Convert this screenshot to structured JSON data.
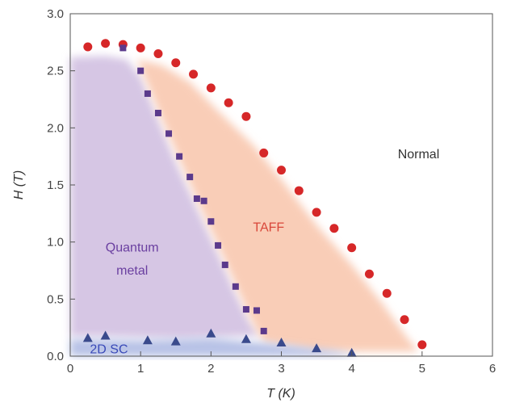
{
  "chart_data": {
    "type": "scatter",
    "xlabel": "T (K)",
    "ylabel": "H (T)",
    "xlim": [
      0,
      6
    ],
    "ylim": [
      0,
      3.0
    ],
    "xticks": [
      "0",
      "1",
      "2",
      "3",
      "4",
      "5",
      "6"
    ],
    "yticks": [
      "0.0",
      "0.5",
      "1.0",
      "1.5",
      "2.0",
      "2.5",
      "3.0"
    ],
    "grid": false,
    "colors": {
      "circles": "#d62728",
      "squares": "#5b3a8c",
      "triangles": "#3a4a8c",
      "quantum_metal_region": "#d6c6e4",
      "taff_region": "#f9cdb7",
      "sc_region": "#b8c2e6"
    },
    "series": [
      {
        "marker": "circle",
        "color": "#d62728",
        "x": [
          0.25,
          0.5,
          0.75,
          1.0,
          1.25,
          1.5,
          1.75,
          2.0,
          2.25,
          2.5,
          2.75,
          3.0,
          3.25,
          3.5,
          3.75,
          4.0,
          4.25,
          4.5,
          4.75,
          5.0
        ],
        "y": [
          2.71,
          2.74,
          2.73,
          2.7,
          2.65,
          2.57,
          2.47,
          2.35,
          2.22,
          2.1,
          1.78,
          1.63,
          1.45,
          1.26,
          1.12,
          0.95,
          0.72,
          0.55,
          0.32,
          0.1
        ]
      },
      {
        "marker": "square",
        "color": "#5b3a8c",
        "x": [
          0.75,
          1.0,
          1.1,
          1.25,
          1.4,
          1.55,
          1.7,
          1.8,
          1.9,
          2.0,
          2.1,
          2.2,
          2.35,
          2.5,
          2.65,
          2.75
        ],
        "y": [
          2.7,
          2.5,
          2.3,
          2.13,
          1.95,
          1.75,
          1.57,
          1.38,
          1.36,
          1.18,
          0.97,
          0.8,
          0.61,
          0.41,
          0.4,
          0.22
        ]
      },
      {
        "marker": "triangle",
        "color": "#3a4a8c",
        "x": [
          0.25,
          0.5,
          1.1,
          1.5,
          2.0,
          2.5,
          3.0,
          3.5,
          4.0
        ],
        "y": [
          0.16,
          0.18,
          0.14,
          0.13,
          0.2,
          0.15,
          0.12,
          0.07,
          0.03
        ]
      }
    ],
    "annotations": [
      {
        "text": "Normal",
        "x": 4.95,
        "y": 1.77,
        "color": "#333333"
      },
      {
        "text": "TAFF",
        "x": 2.82,
        "y": 1.13,
        "color": "#d9473a"
      },
      {
        "text": "Quantum",
        "x": 0.88,
        "y": 0.95,
        "color": "#6a3fa0"
      },
      {
        "text": "metal",
        "x": 0.88,
        "y": 0.75,
        "color": "#6a3fa0"
      },
      {
        "text": "2D SC",
        "x": 0.55,
        "y": 0.06,
        "color": "#3a4ab8"
      }
    ]
  }
}
